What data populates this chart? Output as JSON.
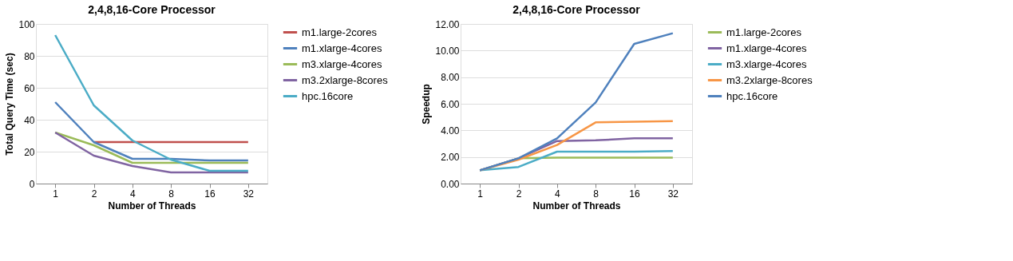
{
  "chart_data": [
    {
      "type": "line",
      "title": "2,4,8,16-Core Processor",
      "xlabel": "Number of Threads",
      "ylabel": "Total Query Time (sec)",
      "categories": [
        "1",
        "2",
        "4",
        "8",
        "16",
        "32"
      ],
      "ylim": [
        0,
        100
      ],
      "yticks": [
        0,
        20,
        40,
        60,
        80,
        100
      ],
      "grid": "y",
      "legend": "right",
      "marker": "none",
      "line_style": "solid",
      "series": [
        {
          "name": "m1.large-2cores",
          "color": "#c0504d",
          "values": [
            null,
            26,
            26,
            26,
            26,
            26
          ]
        },
        {
          "name": "m1.xlarge-4cores",
          "color": "#4f81bd",
          "values": [
            51,
            26,
            15.5,
            15.5,
            14.5,
            14.5
          ]
        },
        {
          "name": "m3.xlarge-4cores",
          "color": "#9bbb59",
          "values": [
            32,
            24,
            13,
            13,
            13,
            13
          ]
        },
        {
          "name": "m3.2xlarge-8cores",
          "color": "#8064a2",
          "values": [
            32,
            17.5,
            11,
            7,
            7,
            7
          ]
        },
        {
          "name": "hpc.16core",
          "color": "#4bacc6",
          "values": [
            93,
            49,
            27,
            15,
            8,
            8
          ]
        }
      ]
    },
    {
      "type": "line",
      "title": "2,4,8,16-Core Processor",
      "xlabel": "Number of Threads",
      "ylabel": "Speedup",
      "categories": [
        "1",
        "2",
        "4",
        "8",
        "16",
        "32"
      ],
      "ylim": [
        0,
        12
      ],
      "yticks": [
        {
          "value": 0,
          "label": "0.00"
        },
        {
          "value": 2,
          "label": "2.00"
        },
        {
          "value": 4,
          "label": "4.00"
        },
        {
          "value": 6,
          "label": "6.00"
        },
        {
          "value": 8,
          "label": "8.00"
        },
        {
          "value": 10,
          "label": "10.00"
        },
        {
          "value": 12,
          "label": "12.00"
        }
      ],
      "grid": "y",
      "legend": "right",
      "marker": "none",
      "line_style": "solid",
      "series": [
        {
          "name": "m1.large-2cores",
          "color": "#9bbb59",
          "values": [
            1,
            1.9,
            1.95,
            1.95,
            1.95,
            1.95
          ]
        },
        {
          "name": "m1.xlarge-4cores",
          "color": "#8064a2",
          "values": [
            1,
            1.9,
            3.2,
            3.25,
            3.4,
            3.4
          ]
        },
        {
          "name": "m3.xlarge-4cores",
          "color": "#4bacc6",
          "values": [
            1,
            1.25,
            2.4,
            2.4,
            2.4,
            2.45
          ]
        },
        {
          "name": "m3.2xlarge-8cores",
          "color": "#f79646",
          "values": [
            1,
            1.8,
            2.9,
            4.6,
            4.65,
            4.7
          ]
        },
        {
          "name": "hpc.16core",
          "color": "#4f81bd",
          "values": [
            1,
            1.9,
            3.4,
            6.1,
            10.5,
            11.3
          ]
        }
      ]
    }
  ]
}
